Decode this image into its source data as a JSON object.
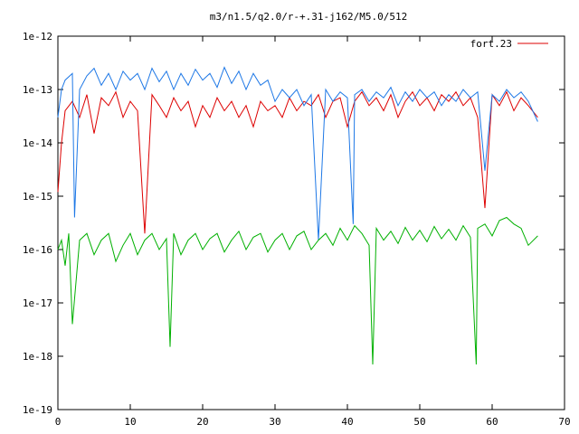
{
  "chart_data": {
    "type": "line",
    "title": "m3/n1.5/q2.0/r-+.31-j162/M5.0/512",
    "xlabel": "",
    "ylabel": "",
    "xlim": [
      0,
      70
    ],
    "ylim": [
      1e-19,
      1e-12
    ],
    "yscale": "log",
    "grid": false,
    "legend_position": "top-right",
    "x_ticks": [
      0,
      10,
      20,
      30,
      40,
      50,
      60,
      70
    ],
    "x_tick_labels": [
      "0",
      "10",
      "20",
      "30",
      "40",
      "50",
      "60",
      "70"
    ],
    "y_ticks": [
      1e-19,
      1e-18,
      1e-17,
      1e-16,
      1e-15,
      1e-14,
      1e-13,
      1e-12
    ],
    "y_tick_labels": [
      "1e-19",
      "1e-18",
      "1e-17",
      "1e-16",
      "1e-15",
      "1e-14",
      "1e-13",
      "1e-12"
    ],
    "series": [
      {
        "name": "fort.23",
        "color": "#dd0000",
        "x": [
          0,
          0.5,
          1,
          2,
          3,
          4,
          5,
          6,
          7,
          8,
          9,
          10,
          11,
          12,
          13,
          14,
          15,
          16,
          17,
          18,
          19,
          20,
          21,
          22,
          23,
          24,
          25,
          26,
          27,
          28,
          29,
          30,
          31,
          32,
          33,
          34,
          35,
          36,
          37,
          38,
          39,
          40,
          41,
          42,
          43,
          44,
          45,
          46,
          47,
          48,
          49,
          50,
          51,
          52,
          53,
          54,
          55,
          56,
          57,
          58,
          59,
          60,
          61,
          62,
          63,
          64,
          65,
          66.3
        ],
        "values": [
          1.2e-15,
          1e-14,
          4e-14,
          6e-14,
          3e-14,
          8e-14,
          1.5e-14,
          7e-14,
          5e-14,
          9e-14,
          3e-14,
          6e-14,
          4e-14,
          2e-16,
          8e-14,
          5e-14,
          3e-14,
          7e-14,
          4e-14,
          6e-14,
          2e-14,
          5e-14,
          3e-14,
          7e-14,
          4e-14,
          6e-14,
          3e-14,
          5e-14,
          2e-14,
          6e-14,
          4e-14,
          5e-14,
          3e-14,
          7e-14,
          4e-14,
          6e-14,
          5e-14,
          8e-14,
          3e-14,
          6e-14,
          7e-14,
          2e-14,
          6e-14,
          9e-14,
          5e-14,
          7e-14,
          4e-14,
          8e-14,
          3e-14,
          6e-14,
          9e-14,
          5e-14,
          7e-14,
          4e-14,
          8e-14,
          6e-14,
          9e-14,
          5e-14,
          7e-14,
          3e-14,
          6e-16,
          8e-14,
          5e-14,
          9e-14,
          4e-14,
          7e-14,
          5e-14,
          3e-14
        ]
      },
      {
        "name": "",
        "color": "#1e78e6",
        "x": [
          0,
          0.5,
          1,
          2,
          2.3,
          3,
          4,
          5,
          6,
          7,
          8,
          9,
          10,
          11,
          12,
          13,
          14,
          15,
          16,
          17,
          18,
          19,
          20,
          21,
          22,
          23,
          24,
          25,
          26,
          27,
          28,
          29,
          30,
          31,
          32,
          33,
          34,
          35,
          36,
          37,
          38,
          39,
          40,
          40.8,
          41,
          42,
          43,
          44,
          45,
          46,
          47,
          48,
          49,
          50,
          51,
          52,
          53,
          54,
          55,
          56,
          57,
          58,
          59,
          60,
          61,
          62,
          63,
          64,
          65,
          66.3
        ],
        "values": [
          3e-14,
          1e-13,
          1.5e-13,
          2e-13,
          4e-16,
          1e-13,
          1.8e-13,
          2.5e-13,
          1.2e-13,
          2e-13,
          1e-13,
          2.2e-13,
          1.5e-13,
          2e-13,
          1e-13,
          2.5e-13,
          1.4e-13,
          2.2e-13,
          1e-13,
          2e-13,
          1.2e-13,
          2.4e-13,
          1.5e-13,
          2e-13,
          1.1e-13,
          2.6e-13,
          1.3e-13,
          2.2e-13,
          1e-13,
          2e-13,
          1.2e-13,
          1.5e-13,
          6e-14,
          1e-13,
          7e-14,
          1e-13,
          5e-14,
          8e-14,
          1.5e-16,
          1e-13,
          6e-14,
          9e-14,
          7e-14,
          3e-16,
          8e-14,
          1e-13,
          6e-14,
          9e-14,
          7e-14,
          1.1e-13,
          5e-14,
          9e-14,
          6e-14,
          1e-13,
          7e-14,
          9e-14,
          5e-14,
          8e-14,
          6e-14,
          1e-13,
          7e-14,
          9e-14,
          3e-15,
          8e-14,
          6e-14,
          1e-13,
          7e-14,
          9e-14,
          6e-14,
          2.5e-14
        ]
      },
      {
        "name": "",
        "color": "#00b000",
        "x": [
          0,
          0.5,
          1,
          1.5,
          2,
          3,
          4,
          5,
          6,
          7,
          8,
          9,
          10,
          11,
          12,
          13,
          14,
          15,
          15.5,
          16,
          17,
          18,
          19,
          20,
          21,
          22,
          23,
          24,
          25,
          26,
          27,
          28,
          29,
          30,
          31,
          32,
          33,
          34,
          35,
          36,
          37,
          38,
          39,
          40,
          41,
          42,
          43,
          43.5,
          44,
          45,
          46,
          47,
          48,
          49,
          50,
          51,
          52,
          53,
          54,
          55,
          56,
          57,
          57.8,
          58,
          59,
          60,
          61,
          62,
          63,
          64,
          65,
          66.3
        ],
        "values": [
          1e-16,
          1.5e-16,
          5e-17,
          2e-16,
          4e-18,
          1.5e-16,
          2e-16,
          8e-17,
          1.5e-16,
          2e-16,
          6e-17,
          1.2e-16,
          2e-16,
          8e-17,
          1.5e-16,
          2e-16,
          1e-16,
          1.6e-16,
          1.5e-18,
          2e-16,
          8e-17,
          1.5e-16,
          2e-16,
          1e-16,
          1.6e-16,
          2e-16,
          9e-17,
          1.5e-16,
          2.2e-16,
          1e-16,
          1.7e-16,
          2e-16,
          9e-17,
          1.5e-16,
          2e-16,
          1e-16,
          1.8e-16,
          2.2e-16,
          1e-16,
          1.5e-16,
          2e-16,
          1.2e-16,
          2.5e-16,
          1.5e-16,
          2.8e-16,
          2e-16,
          1.2e-16,
          7e-19,
          2.5e-16,
          1.5e-16,
          2.2e-16,
          1.3e-16,
          2.6e-16,
          1.5e-16,
          2.3e-16,
          1.4e-16,
          2.7e-16,
          1.6e-16,
          2.4e-16,
          1.5e-16,
          2.8e-16,
          1.7e-16,
          7e-19,
          2.5e-16,
          3e-16,
          1.8e-16,
          3.5e-16,
          4e-16,
          3e-16,
          2.5e-16,
          1.2e-16,
          1.8e-16
        ]
      }
    ]
  }
}
